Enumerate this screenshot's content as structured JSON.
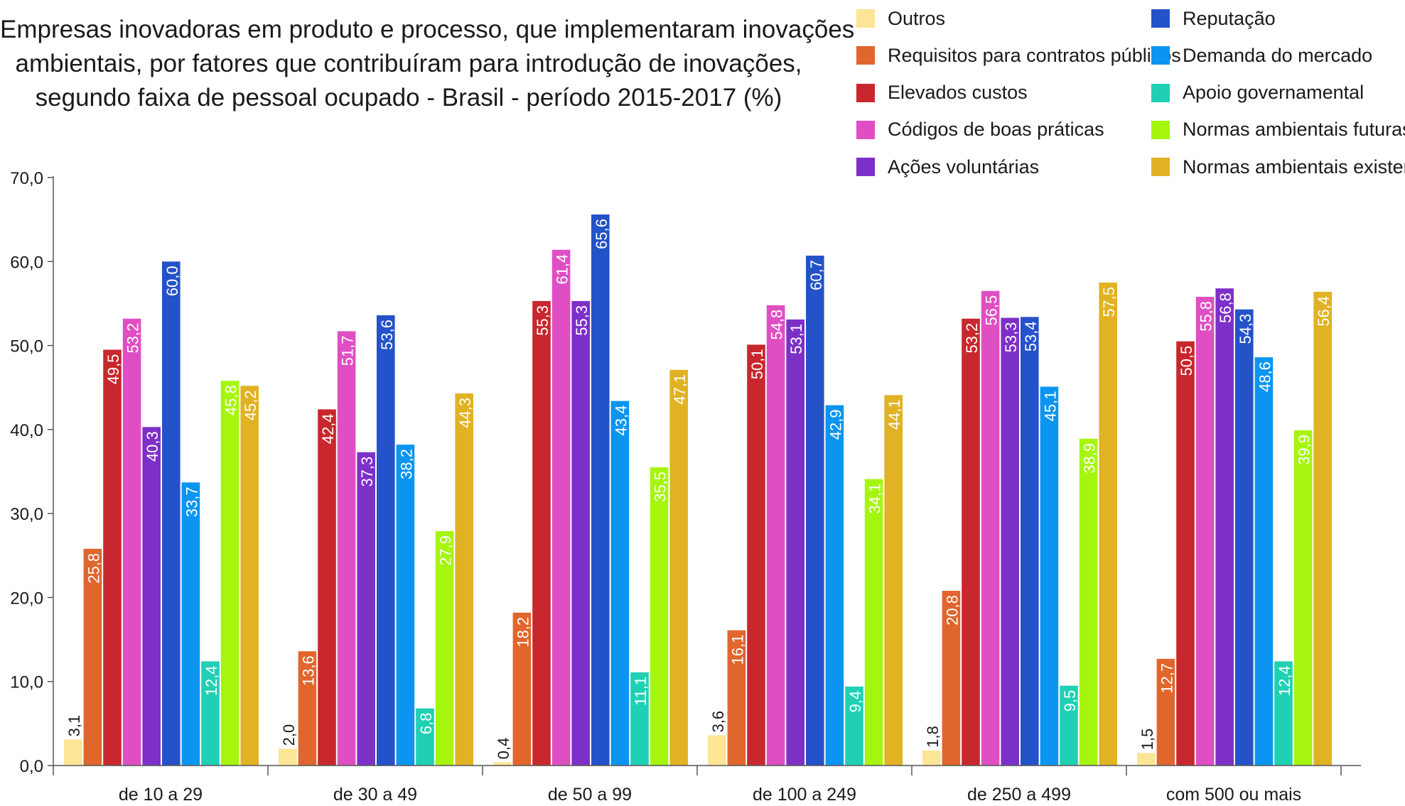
{
  "chart_data": {
    "type": "bar",
    "title": [
      "Empresas inovadoras em produto e processo, que implementaram inovações",
      "ambientais, por fatores que contribuíram para introdução de inovações,",
      "segundo faixa de pessoal ocupado - Brasil - período 2015-2017 (%)"
    ],
    "xlabel": "",
    "ylabel": "",
    "ylim": [
      0,
      70
    ],
    "yticks": [
      "0,0",
      "10,0",
      "20,0",
      "30,0",
      "40,0",
      "50,0",
      "60,0",
      "70,0"
    ],
    "grid": false,
    "legend_position": "top-right",
    "categories": [
      "de 10 a 29",
      "de 30 a 49",
      "de 50 a 99",
      "de 100 a 249",
      "de 250 a 499",
      "com 500 ou mais"
    ],
    "series": [
      {
        "name": "Outros",
        "color": "#fde597",
        "values": [
          3.1,
          2.0,
          0.4,
          3.6,
          1.8,
          1.5
        ],
        "labels": [
          "3,1",
          "2,0",
          "0,4",
          "3,6",
          "1,8",
          "1,5"
        ]
      },
      {
        "name": "Requisitos para contratos públicos",
        "color": "#e0662d",
        "values": [
          25.8,
          13.6,
          18.2,
          16.1,
          20.8,
          12.7
        ],
        "labels": [
          "25,8",
          "13,6",
          "18,2",
          "16,1",
          "20,8",
          "12,7"
        ]
      },
      {
        "name": "Elevados custos",
        "color": "#c8272d",
        "values": [
          49.5,
          42.4,
          55.3,
          50.1,
          53.2,
          50.5
        ],
        "labels": [
          "49,5",
          "42,4",
          "55,3",
          "50,1",
          "53,2",
          "50,5"
        ]
      },
      {
        "name": "Códigos de boas práticas",
        "color": "#df4fc3",
        "values": [
          53.2,
          51.7,
          61.4,
          54.8,
          56.5,
          55.8
        ],
        "labels": [
          "53,2",
          "51,7",
          "61,4",
          "54,8",
          "56,5",
          "55,8"
        ]
      },
      {
        "name": "Ações voluntárias",
        "color": "#7d30c8",
        "values": [
          40.3,
          37.3,
          55.3,
          53.1,
          53.3,
          56.8
        ],
        "labels": [
          "40,3",
          "37,3",
          "55,3",
          "53,1",
          "53,3",
          "56,8"
        ]
      },
      {
        "name": "Reputação",
        "color": "#2452c8",
        "values": [
          60.0,
          53.6,
          65.6,
          60.7,
          53.4,
          54.3
        ],
        "labels": [
          "60,0",
          "53,6",
          "65,6",
          "60,7",
          "53,4",
          "54,3"
        ]
      },
      {
        "name": "Demanda do mercado",
        "color": "#0b95f0",
        "values": [
          33.7,
          38.2,
          43.4,
          42.9,
          45.1,
          48.6
        ],
        "labels": [
          "33,7",
          "38,2",
          "43,4",
          "42,9",
          "45,1",
          "48,6"
        ]
      },
      {
        "name": "Apoio governamental",
        "color": "#20d0b5",
        "values": [
          12.4,
          6.8,
          11.1,
          9.4,
          9.5,
          12.4
        ],
        "labels": [
          "12,4",
          "6,8",
          "11,1",
          "9,4",
          "9,5",
          "12,4"
        ]
      },
      {
        "name": "Normas ambientais futuras",
        "color": "#a6f50f",
        "values": [
          45.8,
          27.9,
          35.5,
          34.1,
          38.9,
          39.9
        ],
        "labels": [
          "45,8",
          "27,9",
          "35,5",
          "34,1",
          "38,9",
          "39,9"
        ]
      },
      {
        "name": "Normas ambientais existentes",
        "color": "#e1b223",
        "values": [
          45.2,
          44.3,
          47.1,
          44.1,
          57.5,
          56.4
        ],
        "labels": [
          "45,2",
          "44,3",
          "47,1",
          "44,1",
          "57,5",
          "56,4"
        ]
      }
    ]
  }
}
